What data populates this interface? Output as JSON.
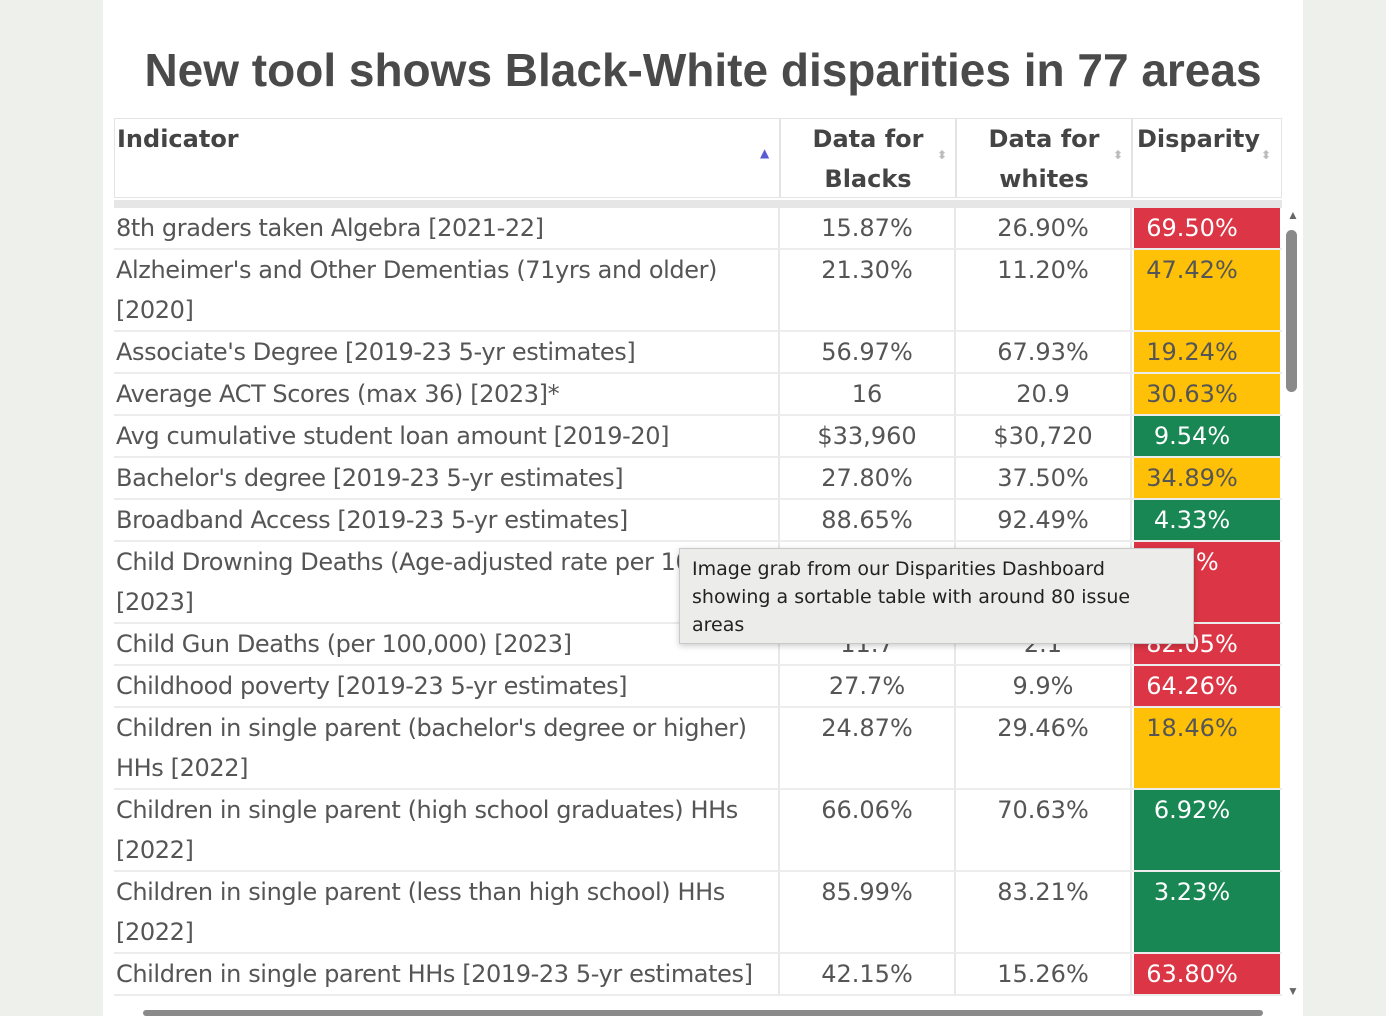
{
  "title": "New tool shows Black-White disparities in 77 areas",
  "table": {
    "headers": {
      "indicator": "Indicator",
      "blacks": "Data for Blacks",
      "whites": "Data for whites",
      "disparity": "Disparity"
    },
    "rows": [
      {
        "indicator": "8th graders taken Algebra [2021-22]",
        "blacks": "15.87%",
        "whites": "26.90%",
        "disparity": "69.50%",
        "status": "red"
      },
      {
        "indicator": "Alzheimer's and Other Dementias (71yrs and older) [2020]",
        "blacks": "21.30%",
        "whites": "11.20%",
        "disparity": "47.42%",
        "status": "yellow"
      },
      {
        "indicator": "Associate's Degree [2019-23 5-yr estimates]",
        "blacks": "56.97%",
        "whites": "67.93%",
        "disparity": "19.24%",
        "status": "yellow"
      },
      {
        "indicator": "Average ACT Scores (max 36) [2023]*",
        "blacks": "16",
        "whites": "20.9",
        "disparity": "30.63%",
        "status": "yellow"
      },
      {
        "indicator": "Avg cumulative student loan amount [2019-20]",
        "blacks": "$33,960",
        "whites": "$30,720",
        "disparity": "9.54%",
        "status": "green"
      },
      {
        "indicator": "Bachelor's degree [2019-23 5-yr estimates]",
        "blacks": "27.80%",
        "whites": "37.50%",
        "disparity": "34.89%",
        "status": "yellow"
      },
      {
        "indicator": "Broadband Access [2019-23 5-yr estimates]",
        "blacks": "88.65%",
        "whites": "92.49%",
        "disparity": "4.33%",
        "status": "green"
      },
      {
        "indicator": "Child Drowning Deaths (Age-adjusted rate per 100,000) [2023]",
        "blacks": "",
        "whites": "",
        "disparity": "65%",
        "status": "red"
      },
      {
        "indicator": "Child Gun Deaths (per 100,000) [2023]",
        "blacks": "11.7",
        "whites": "2.1",
        "disparity": "82.05%",
        "status": "red"
      },
      {
        "indicator": "Childhood poverty [2019-23 5-yr estimates]",
        "blacks": "27.7%",
        "whites": "9.9%",
        "disparity": "64.26%",
        "status": "red"
      },
      {
        "indicator": "Children in single parent (bachelor's degree or higher) HHs [2022]",
        "blacks": "24.87%",
        "whites": "29.46%",
        "disparity": "18.46%",
        "status": "yellow"
      },
      {
        "indicator": "Children in single parent (high school graduates) HHs [2022]",
        "blacks": "66.06%",
        "whites": "70.63%",
        "disparity": "6.92%",
        "status": "green"
      },
      {
        "indicator": "Children in single parent (less than high school) HHs [2022]",
        "blacks": "85.99%",
        "whites": "83.21%",
        "disparity": "3.23%",
        "status": "green"
      },
      {
        "indicator": "Children in single parent HHs [2019-23 5-yr estimates]",
        "blacks": "42.15%",
        "whites": "15.26%",
        "disparity": "63.80%",
        "status": "red"
      }
    ]
  },
  "tooltip": "Image grab from our Disparities Dashboard showing a sortable table with around 80 issue areas",
  "colors": {
    "red": "#dc3545",
    "yellow": "#ffc107",
    "green": "#198754"
  }
}
